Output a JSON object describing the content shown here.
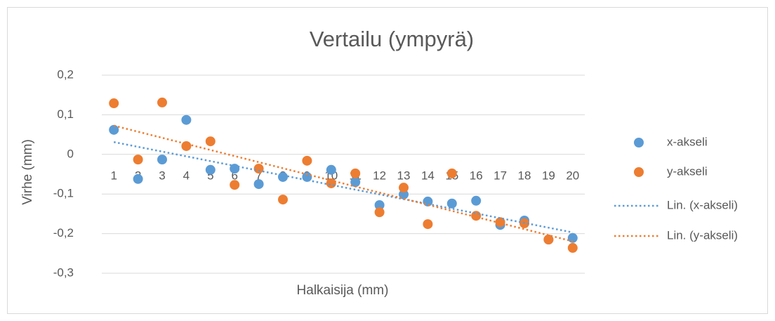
{
  "chart_data": {
    "type": "scatter",
    "title": "Vertailu (ympyrä)",
    "xlabel": "Halkaisija (mm)",
    "ylabel": "Virhe (mm)",
    "categories": [
      "1",
      "2",
      "3",
      "4",
      "5",
      "6",
      "7",
      "8",
      "9",
      "10",
      "11",
      "12",
      "13",
      "14",
      "15",
      "16",
      "17",
      "18",
      "19",
      "20"
    ],
    "series": [
      {
        "name": "x-akseli",
        "color": "#5b9bd5",
        "values": [
          0.062,
          -0.062,
          -0.013,
          0.087,
          -0.039,
          -0.036,
          -0.075,
          -0.057,
          -0.057,
          -0.039,
          -0.07,
          -0.128,
          -0.101,
          -0.119,
          -0.124,
          -0.117,
          -0.178,
          -0.167,
          -0.215,
          -0.211
        ]
      },
      {
        "name": "y-akseli",
        "color": "#ed7d31",
        "values": [
          0.129,
          -0.013,
          0.131,
          0.021,
          0.033,
          -0.077,
          -0.036,
          -0.114,
          -0.016,
          -0.073,
          -0.048,
          -0.146,
          -0.084,
          -0.176,
          -0.048,
          -0.155,
          -0.171,
          -0.174,
          -0.215,
          -0.236
        ]
      }
    ],
    "trendline": "linear",
    "trendline_labels": [
      "Lin. (x-akseli)",
      "Lin. (y-akseli)"
    ],
    "ylim": [
      -0.3,
      0.2
    ],
    "yticks": [
      {
        "value": 0.2,
        "label": "0,2"
      },
      {
        "value": 0.1,
        "label": "0,1"
      },
      0,
      {
        "value": -0.1,
        "label": "-0,1"
      },
      {
        "value": -0.2,
        "label": "-0,2"
      },
      {
        "value": -0.3,
        "label": "-0,3"
      }
    ],
    "grid": true,
    "legend": "right"
  }
}
